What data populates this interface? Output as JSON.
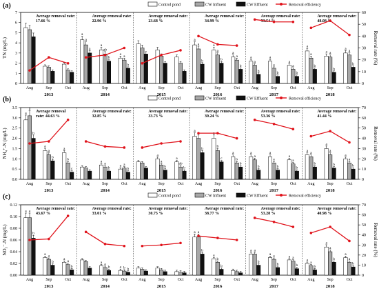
{
  "chart_data": [
    {
      "type": "bar",
      "panel_label": "(a)",
      "ylabel": "TN (mg/L)",
      "ylabel_right": "Removal rate (%)",
      "ylim": [
        0,
        7
      ],
      "yticks": [
        0,
        1,
        2,
        3,
        4,
        5,
        6,
        7
      ],
      "ylim_right": [
        0,
        60
      ],
      "yticks_right": [
        0,
        10,
        20,
        30,
        40,
        50,
        60
      ],
      "months": [
        "Aug",
        "Sep",
        "Oct"
      ],
      "legend": [
        "Control pond",
        "CW Influent",
        "CW Effluent",
        "Removal efficiency"
      ],
      "years": [
        {
          "year": "2013",
          "rate_label": "Average removal rate:",
          "rate_value": "17.66 %",
          "control": [
            5.5,
            1.7,
            1.9
          ],
          "influent": [
            5.3,
            1.6,
            1.3
          ],
          "effluent": [
            4.6,
            1.2,
            1.1
          ],
          "removal": [
            11,
            22,
            17
          ],
          "letters": [
            [
              "",
              "",
              ""
            ],
            [
              "",
              "",
              ""
            ],
            [
              "",
              "",
              ""
            ]
          ]
        },
        {
          "year": "2014",
          "rate_label": "Average removal rate:",
          "rate_value": "22.96 %",
          "control": [
            4.3,
            3.3,
            2.5
          ],
          "influent": [
            3.8,
            2.9,
            2.3
          ],
          "effluent": [
            3.0,
            2.2,
            1.5
          ],
          "removal": [
            22,
            24,
            30
          ],
          "letters": [
            [
              "a",
              "a",
              "a"
            ],
            [
              "a",
              "ab",
              "a"
            ],
            [
              "a",
              "b",
              "b"
            ]
          ]
        },
        {
          "year": "2015",
          "rate_label": "Average removal rate:",
          "rate_value": "23.68 %",
          "control": [
            3.9,
            3.3,
            2.6
          ],
          "influent": [
            3.5,
            2.7,
            2.0
          ],
          "effluent": [
            2.9,
            2.0,
            1.2
          ],
          "removal": [
            17,
            24,
            28
          ],
          "letters": [
            [
              "",
              "",
              ""
            ],
            [
              "",
              "",
              ""
            ],
            [
              "",
              "",
              ""
            ]
          ]
        },
        {
          "year": "2016",
          "rate_label": "Average removal rate:",
          "rate_value": "34.99 %",
          "control": [
            3.8,
            3.3,
            2.6
          ],
          "influent": [
            3.4,
            2.8,
            2.3
          ],
          "effluent": [
            1.9,
            2.0,
            1.4
          ],
          "removal": [
            40,
            33,
            32
          ],
          "letters": [
            [
              "a",
              "a",
              "a"
            ],
            [
              "a",
              "a",
              "a"
            ],
            [
              "b",
              "b",
              "b"
            ]
          ]
        },
        {
          "year": "2017",
          "rate_label": "Average removal rate:",
          "rate_value": "53.54 %",
          "control": [
            2.2,
            2.2,
            1.8
          ],
          "influent": [
            1.8,
            1.5,
            1.4
          ],
          "effluent": [
            0.9,
            0.7,
            0.7
          ],
          "removal": [
            54,
            52,
            52
          ],
          "letters": [
            [
              "a",
              "a",
              "a"
            ],
            [
              "a",
              "a",
              "a"
            ],
            [
              "b",
              "b",
              "b"
            ]
          ]
        },
        {
          "year": "2018",
          "rate_label": "Average removal rate:",
          "rate_value": "48.08 %",
          "control": [
            3.2,
            2.7,
            3.0
          ],
          "influent": [
            2.5,
            2.6,
            2.8
          ],
          "effluent": [
            1.4,
            1.1,
            1.6
          ],
          "removal": [
            47,
            53,
            41
          ],
          "letters": [
            [
              "a",
              "a",
              "a"
            ],
            [
              "a",
              "a",
              "a"
            ],
            [
              "b",
              "b",
              "b"
            ]
          ]
        }
      ]
    },
    {
      "type": "bar",
      "panel_label": "(b)",
      "ylabel": "NH₄⁺-N (mg/L)",
      "ylabel_right": "Removal rate (%)",
      "ylim": [
        0,
        3.5
      ],
      "yticks": [
        0,
        0.5,
        1.0,
        1.5,
        2.0,
        2.5,
        3.0,
        3.5
      ],
      "ytick_labels": [
        "0.0",
        "0.5",
        "1.0",
        "1.5",
        "2.0",
        "2.5",
        "3.0",
        "3.5"
      ],
      "ylim_right": [
        0,
        70
      ],
      "yticks_right": [
        0,
        10,
        20,
        30,
        40,
        50,
        60,
        70
      ],
      "months": [
        "Aug",
        "Sep",
        "Oct"
      ],
      "legend": [
        "Control pond",
        "CW Influent",
        "CW Effluent",
        "Removal efficiency"
      ],
      "years": [
        {
          "year": "2013",
          "rate_label": "Average removal",
          "rate_value": "rate: 44.63 %",
          "control": [
            2.9,
            1.4,
            1.3
          ],
          "influent": [
            3.1,
            1.2,
            0.8
          ],
          "effluent": [
            2.0,
            0.9,
            0.35
          ],
          "removal": [
            35,
            37,
            58
          ],
          "letters": [
            [
              "a",
              "a",
              "a"
            ],
            [
              "a",
              "a",
              "b"
            ],
            [
              "b",
              "b",
              "c"
            ]
          ]
        },
        {
          "year": "2014",
          "rate_label": "Average removal rate:",
          "rate_value": "32.85 %",
          "control": [
            0.6,
            0.7,
            0.5
          ],
          "influent": [
            0.55,
            0.6,
            0.55
          ],
          "effluent": [
            0.4,
            0.4,
            0.35
          ],
          "removal": [
            37,
            32,
            31
          ],
          "letters": [
            [
              "",
              "a",
              "a"
            ],
            [
              "",
              "a",
              "a"
            ],
            [
              "",
              "b",
              "b"
            ]
          ]
        },
        {
          "year": "2015",
          "rate_label": "Average removal rate:",
          "rate_value": "33.73 %",
          "control": [
            0.85,
            1.0,
            0.85
          ],
          "influent": [
            0.8,
            0.7,
            0.6
          ],
          "effluent": [
            0.55,
            0.45,
            0.4
          ],
          "removal": [
            31,
            35,
            37
          ],
          "letters": [
            [
              "",
              "a",
              "a"
            ],
            [
              "",
              "a",
              "ab"
            ],
            [
              "",
              "b",
              "b"
            ]
          ]
        },
        {
          "year": "2016",
          "rate_label": "Average removal rate:",
          "rate_value": "39.24 %",
          "control": [
            2.1,
            2.0,
            1.1
          ],
          "influent": [
            2.0,
            1.4,
            0.8
          ],
          "effluent": [
            1.3,
            0.85,
            0.6
          ],
          "removal": [
            45,
            45,
            40
          ],
          "letters": [
            [
              "a",
              "a",
              "a"
            ],
            [
              "a",
              "b",
              "b"
            ],
            [
              "b",
              "c",
              "b"
            ]
          ]
        },
        {
          "year": "2017",
          "rate_label": "Average removal rate:",
          "rate_value": "53.36 %",
          "control": [
            1.1,
            1.1,
            0.95
          ],
          "influent": [
            0.95,
            0.8,
            0.75
          ],
          "effluent": [
            0.45,
            0.45,
            0.4
          ],
          "removal": [
            58,
            54,
            49
          ],
          "letters": [
            [
              "a",
              "a",
              "a"
            ],
            [
              "a",
              "a",
              "a"
            ],
            [
              "b",
              "b",
              "b"
            ]
          ]
        },
        {
          "year": "2018",
          "rate_label": "Average removal rate:",
          "rate_value": "41.44 %",
          "control": [
            1.2,
            1.5,
            1.0
          ],
          "influent": [
            1.1,
            1.2,
            0.8
          ],
          "effluent": [
            0.6,
            0.55,
            0.5
          ],
          "removal": [
            42,
            47,
            36
          ],
          "letters": [
            [
              "a",
              "a",
              "a"
            ],
            [
              "a",
              "a",
              "a"
            ],
            [
              "b",
              "b",
              "b"
            ]
          ]
        }
      ]
    },
    {
      "type": "bar",
      "panel_label": "(c)",
      "ylabel": "NO₃⁻-N (mg/L)",
      "ylabel_right": "Removal rate (%)",
      "ylim": [
        0,
        0.12
      ],
      "yticks": [
        0,
        0.02,
        0.04,
        0.06,
        0.08,
        0.1,
        0.12
      ],
      "ytick_labels": [
        "0.00",
        "0.02",
        "0.04",
        "0.06",
        "0.08",
        "0.10",
        "0.12"
      ],
      "ylim_right": [
        0,
        70
      ],
      "yticks_right": [
        0,
        10,
        20,
        30,
        40,
        50,
        60,
        70
      ],
      "months": [
        "Aug",
        "Sep",
        "Oct"
      ],
      "legend": [
        "Control pond",
        "CW Influent",
        "CW Effluent",
        "Removal efficiency"
      ],
      "years": [
        {
          "year": "2013",
          "rate_label": "Average removal rate:",
          "rate_value": "43.67 %",
          "control": [
            0.098,
            0.03,
            0.022
          ],
          "influent": [
            0.098,
            0.027,
            0.018
          ],
          "effluent": [
            0.063,
            0.017,
            0.009
          ],
          "removal": [
            35,
            36,
            59
          ],
          "letters": [
            [
              "a",
              "a",
              "a"
            ],
            [
              "a",
              "a",
              "a"
            ],
            [
              "b",
              "b",
              "b"
            ]
          ]
        },
        {
          "year": "2014",
          "rate_label": "Average removal rate:",
          "rate_value": "33.01 %",
          "control": [
            0.026,
            0.016,
            0.008
          ],
          "influent": [
            0.023,
            0.013,
            0.007
          ],
          "effluent": [
            0.012,
            0.008,
            0.005
          ],
          "removal": [
            43,
            31,
            29
          ],
          "letters": [
            [
              "",
              "a",
              "a"
            ],
            [
              "",
              "a",
              "b"
            ],
            [
              "",
              "b",
              "b"
            ]
          ]
        },
        {
          "year": "2015",
          "rate_label": "Average removal rate:",
          "rate_value": "30.75 %",
          "control": [
            0.012,
            0.012,
            0.006
          ],
          "influent": [
            0.01,
            0.009,
            0.005
          ],
          "effluent": [
            0.007,
            0.006,
            0.004
          ],
          "removal": [
            29,
            30,
            32
          ],
          "letters": [
            [
              "",
              "",
              ""
            ],
            [
              "",
              "",
              ""
            ],
            [
              "",
              "",
              ""
            ]
          ]
        },
        {
          "year": "2016",
          "rate_label": "Average removal rate:",
          "rate_value": "38.77 %",
          "control": [
            0.065,
            0.028,
            0.008
          ],
          "influent": [
            0.065,
            0.022,
            0.006
          ],
          "effluent": [
            0.036,
            0.01,
            0.004
          ],
          "removal": [
            39,
            37,
            35
          ],
          "letters": [
            [
              "a",
              "a",
              ""
            ],
            [
              "a",
              "b",
              ""
            ],
            [
              "b",
              "b",
              ""
            ]
          ]
        },
        {
          "year": "2017",
          "rate_label": "Average removal rate:",
          "rate_value": "53.28 %",
          "control": [
            0.036,
            0.03,
            0.026
          ],
          "influent": [
            0.036,
            0.027,
            0.024
          ],
          "effluent": [
            0.017,
            0.013,
            0.011
          ],
          "removal": [
            57,
            53,
            48
          ],
          "letters": [
            [
              "a",
              "a",
              "a"
            ],
            [
              "a",
              "a",
              "a"
            ],
            [
              "b",
              "b",
              "b"
            ]
          ]
        },
        {
          "year": "2018",
          "rate_label": "Average removal rate:",
          "rate_value": "40.98 %",
          "control": [
            0.02,
            0.048,
            0.03
          ],
          "influent": [
            0.016,
            0.04,
            0.022
          ],
          "effluent": [
            0.009,
            0.022,
            0.014
          ],
          "removal": [
            42,
            48,
            34
          ],
          "letters": [
            [
              "a",
              "a",
              "a"
            ],
            [
              "a",
              "a",
              "a"
            ],
            [
              "b",
              "b",
              "b"
            ]
          ]
        }
      ]
    }
  ]
}
